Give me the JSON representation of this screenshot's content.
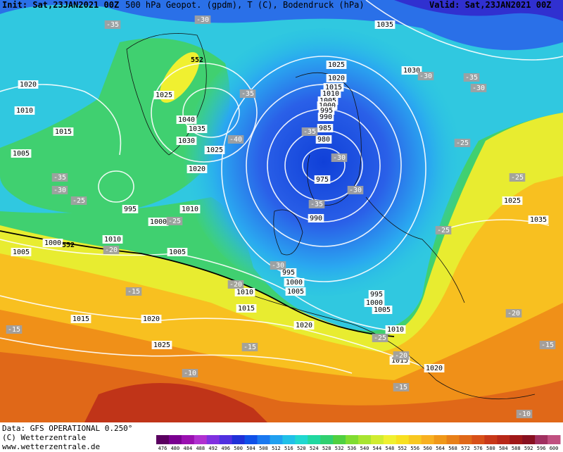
{
  "header": {
    "init": "Init: Sat,23JAN2021 00Z",
    "title": "500 hPa Geopot. (gpdm), T (C), Bodendruck (hPa)",
    "valid": "Valid: Sat,23JAN2021 00Z"
  },
  "map": {
    "isobar_labels": [
      1035,
      1025,
      1030,
      1020,
      1015,
      1010,
      1005,
      1000,
      995,
      990,
      985,
      980,
      975,
      990,
      1025,
      1040,
      1035,
      1030,
      1025,
      1020,
      1020,
      1010,
      1015,
      1005,
      995,
      1010,
      1000,
      1010,
      1000,
      1005,
      1005,
      995,
      1000,
      1005,
      1010,
      1015,
      995,
      1000,
      1005,
      1020,
      1015,
      1020,
      1010,
      1025,
      1015,
      1020,
      1025,
      1035
    ],
    "geopotential_labels": [
      552,
      552
    ],
    "temperature_labels": [
      -35,
      -30,
      -35,
      -40,
      -30,
      -30,
      -35,
      -35,
      -30,
      -25,
      -25,
      -20,
      -30,
      -20,
      -15,
      -15,
      -15,
      -25,
      -20,
      -10,
      -15,
      -10,
      -20,
      -15,
      -25,
      -25,
      -25,
      -35,
      -30,
      -30,
      -35
    ]
  },
  "footer": {
    "data": "Data: GFS OPERATIONAL 0.250°",
    "copyright": "(C) Wetterzentrale",
    "url": "www.wetterzentrale.de"
  },
  "colorbar": {
    "ticks": [
      476,
      480,
      484,
      488,
      492,
      496,
      500,
      504,
      508,
      512,
      516,
      520,
      524,
      528,
      532,
      536,
      540,
      544,
      548,
      552,
      556,
      560,
      564,
      568,
      572,
      576,
      580,
      584,
      588,
      592,
      596,
      600
    ],
    "colors": [
      "#5a0060",
      "#7a0090",
      "#9a10b0",
      "#b030d0",
      "#8030e0",
      "#5030e0",
      "#2030d8",
      "#1050e8",
      "#1a78f0",
      "#20a0f0",
      "#20c0e8",
      "#20d8d0",
      "#20d8a0",
      "#30d070",
      "#50d040",
      "#80dc30",
      "#a8e430",
      "#d0ec30",
      "#f0f030",
      "#f8e020",
      "#f8c820",
      "#f8b020",
      "#f09818",
      "#e88018",
      "#e06818",
      "#d85018",
      "#c83818",
      "#b82818",
      "#a01818",
      "#881020",
      "#a03060",
      "#c05080"
    ]
  }
}
